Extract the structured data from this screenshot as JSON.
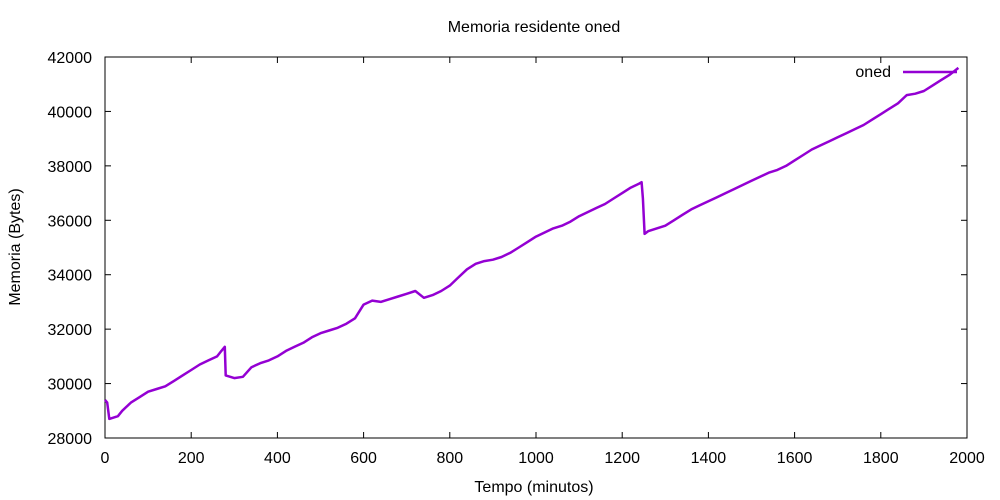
{
  "chart_data": {
    "type": "line",
    "title": "Memoria residente oned",
    "xlabel": "Tempo (minutos)",
    "ylabel": "Memoria (Bytes)",
    "xlim": [
      0,
      2000
    ],
    "ylim": [
      28000,
      42000
    ],
    "xticks": [
      0,
      200,
      400,
      600,
      800,
      1000,
      1200,
      1400,
      1600,
      1800,
      2000
    ],
    "yticks": [
      28000,
      30000,
      32000,
      34000,
      36000,
      38000,
      40000,
      42000
    ],
    "grid": false,
    "legend_position": "top-right",
    "series": [
      {
        "name": "oned",
        "color": "#9400d3",
        "x": [
          0,
          5,
          10,
          20,
          30,
          40,
          60,
          80,
          100,
          120,
          140,
          160,
          180,
          200,
          220,
          240,
          260,
          270,
          278,
          280,
          300,
          320,
          340,
          360,
          380,
          400,
          420,
          440,
          460,
          480,
          500,
          520,
          540,
          560,
          580,
          600,
          620,
          640,
          660,
          680,
          700,
          720,
          740,
          760,
          780,
          800,
          820,
          840,
          860,
          880,
          900,
          920,
          940,
          960,
          980,
          1000,
          1020,
          1040,
          1060,
          1080,
          1100,
          1120,
          1140,
          1160,
          1180,
          1200,
          1220,
          1240,
          1245,
          1248,
          1252,
          1260,
          1280,
          1300,
          1320,
          1340,
          1360,
          1380,
          1400,
          1420,
          1440,
          1460,
          1480,
          1500,
          1520,
          1540,
          1560,
          1580,
          1600,
          1620,
          1640,
          1660,
          1680,
          1700,
          1720,
          1740,
          1760,
          1780,
          1800,
          1820,
          1840,
          1860,
          1880,
          1900,
          1920,
          1940,
          1960,
          1980
        ],
        "y": [
          29400,
          29300,
          28700,
          28750,
          28800,
          29000,
          29300,
          29500,
          29700,
          29800,
          29900,
          30100,
          30300,
          30500,
          30700,
          30850,
          31000,
          31200,
          31350,
          30300,
          30200,
          30250,
          30600,
          30750,
          30850,
          31000,
          31200,
          31350,
          31500,
          31700,
          31850,
          31950,
          32050,
          32200,
          32400,
          32900,
          33050,
          33000,
          33100,
          33200,
          33300,
          33400,
          33150,
          33250,
          33400,
          33600,
          33900,
          34200,
          34400,
          34500,
          34550,
          34650,
          34800,
          35000,
          35200,
          35400,
          35550,
          35700,
          35800,
          35950,
          36150,
          36300,
          36450,
          36600,
          36800,
          37000,
          37200,
          37350,
          37400,
          36800,
          35500,
          35600,
          35700,
          35800,
          36000,
          36200,
          36400,
          36550,
          36700,
          36850,
          37000,
          37150,
          37300,
          37450,
          37600,
          37750,
          37850,
          38000,
          38200,
          38400,
          38600,
          38750,
          38900,
          39050,
          39200,
          39350,
          39500,
          39700,
          39900,
          40100,
          40300,
          40600,
          40650,
          40750,
          40950,
          41150,
          41350,
          41600
        ]
      }
    ]
  }
}
